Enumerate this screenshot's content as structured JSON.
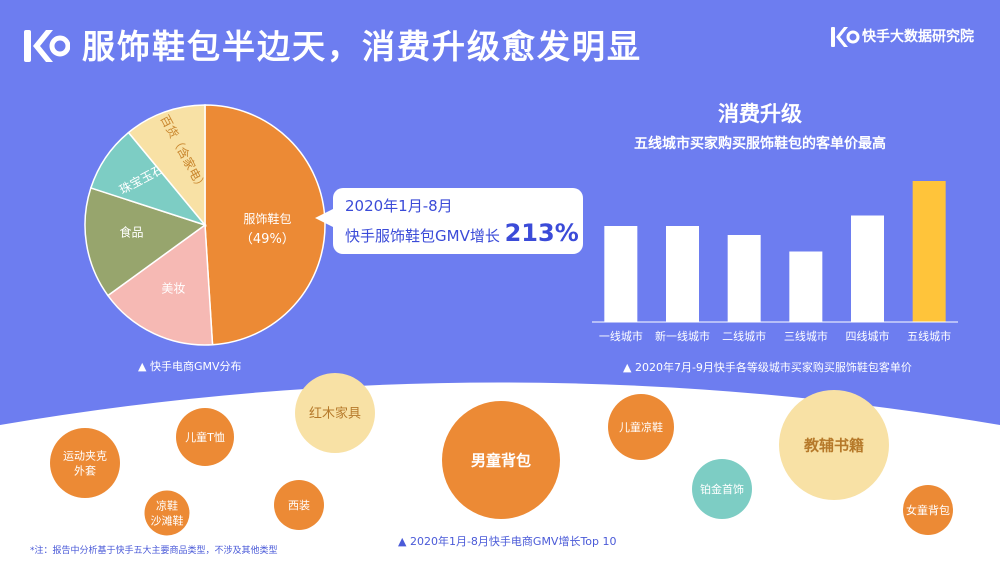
{
  "header": {
    "title": "服饰鞋包半边天，消费升级愈发明显",
    "brand": "快手大数据研究院"
  },
  "colors": {
    "background": "#6d7df0",
    "orange": "#ec8a35",
    "pink": "#f6b9b4",
    "green": "#97a56d",
    "teal": "#7dcdc4",
    "cream": "#f8e1a5",
    "bar_white": "#ffffff",
    "bar_highlight": "#ffc43a"
  },
  "callout": {
    "line1": "2020年1月-8月",
    "line2_prefix": "快手服饰鞋包GMV增长",
    "line2_value": "213%"
  },
  "captions": {
    "pie": "▲ 快手电商GMV分布",
    "bar": "▲ 2020年7月-9月快手各等级城市买家购买服饰鞋包客单价",
    "bubbles": "▲ 2020年1月-8月快手电商GMV增长Top 10",
    "footnote": "*注：报告中分析基于快手五大主要商品类型，不涉及其他类型"
  },
  "bar_title": "消费升级",
  "bar_subtitle": "五线城市买家购买服饰鞋包的客单价最高",
  "chart_data": [
    {
      "type": "pie",
      "slices": [
        {
          "label": "服饰鞋包",
          "value": 49,
          "value_label": "（49%）",
          "color": "#ec8a35"
        },
        {
          "label": "美妆",
          "value": 16,
          "color": "#f6b9b4"
        },
        {
          "label": "食品",
          "value": 15,
          "color": "#97a56d"
        },
        {
          "label": "珠宝玉石",
          "value": 9,
          "color": "#7dcdc4"
        },
        {
          "label": "百货（含家电）",
          "value": 11,
          "color": "#f8e1a5"
        }
      ]
    },
    {
      "type": "bar",
      "categories": [
        "一线城市",
        "新一线城市",
        "二线城市",
        "三线城市",
        "四线城市",
        "五线城市"
      ],
      "values": [
        64,
        64,
        58,
        47,
        71,
        94
      ],
      "ylim": [
        0,
        100
      ],
      "highlight_index": 5
    },
    {
      "type": "bubble",
      "items": [
        {
          "label": "运动夹克外套",
          "lines": [
            "运动夹克",
            "外套"
          ],
          "size": 70,
          "color": "#ec8a35"
        },
        {
          "label": "儿童T恤",
          "lines": [
            "儿童T恤"
          ],
          "size": 58,
          "color": "#ec8a35"
        },
        {
          "label": "凉鞋沙滩鞋",
          "lines": [
            "凉鞋",
            "沙滩鞋"
          ],
          "size": 45,
          "color": "#ec8a35"
        },
        {
          "label": "红木家具",
          "lines": [
            "红木家具"
          ],
          "size": 80,
          "color": "#f8e1a5"
        },
        {
          "label": "西装",
          "lines": [
            "西装"
          ],
          "size": 50,
          "color": "#ec8a35"
        },
        {
          "label": "男童背包",
          "lines": [
            "男童背包"
          ],
          "size": 118,
          "color": "#ec8a35"
        },
        {
          "label": "儿童凉鞋",
          "lines": [
            "儿童凉鞋"
          ],
          "size": 66,
          "color": "#ec8a35"
        },
        {
          "label": "铂金首饰",
          "lines": [
            "铂金首饰"
          ],
          "size": 60,
          "color": "#7dcdc4"
        },
        {
          "label": "教辅书籍",
          "lines": [
            "教辅书籍"
          ],
          "size": 110,
          "color": "#f8e1a5"
        },
        {
          "label": "女童背包",
          "lines": [
            "女童背包"
          ],
          "size": 50,
          "color": "#ec8a35"
        }
      ]
    }
  ]
}
